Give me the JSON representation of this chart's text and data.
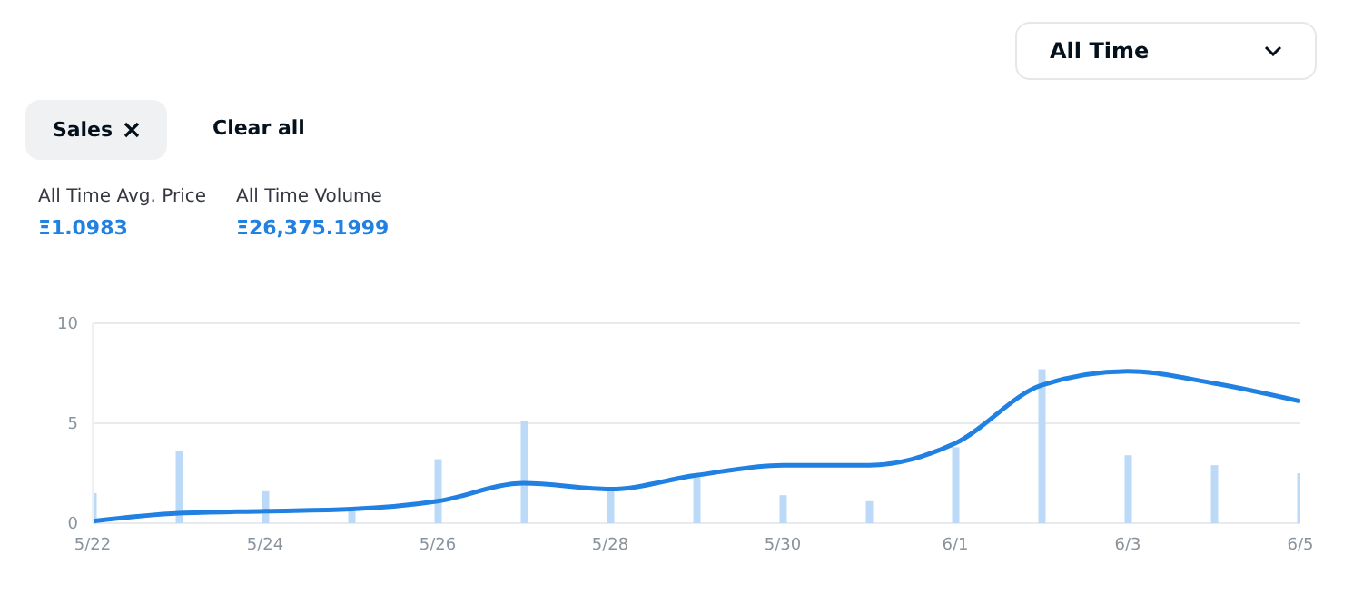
{
  "chart_data": {
    "type": "line",
    "x": [
      "--05-22",
      "--05-23",
      "--05-24",
      "--05-25",
      "--05-26",
      "--05-27",
      "--05-28",
      "--05-29",
      "--05-30",
      "--05-31",
      "--06-01",
      "--06-02",
      "--06-03",
      "--06-04",
      "--06-05"
    ],
    "series": [
      {
        "type": "bar",
        "color": "#bcdaf7",
        "values": [
          1.5,
          3.6,
          1.6,
          0.8,
          3.2,
          5.1,
          1.6,
          2.3,
          1.4,
          1.1,
          3.8,
          7.7,
          3.4,
          2.9,
          2.5
        ]
      },
      {
        "color": "#2081e2",
        "values": [
          0.1,
          0.5,
          0.6,
          0.7,
          1.1,
          2.0,
          1.7,
          2.4,
          2.9,
          2.9,
          4.0,
          6.9,
          7.6,
          7.0,
          6.1
        ]
      }
    ],
    "xlim": [
      "--05-22",
      "--06-05"
    ],
    "xticks": [
      {
        "value": "--05-22",
        "label": "5/22"
      },
      {
        "value": "--05-24",
        "label": "5/24"
      },
      {
        "value": "--05-26",
        "label": "5/26"
      },
      {
        "value": "--05-28",
        "label": "5/28"
      },
      {
        "value": "--05-30",
        "label": "5/30"
      },
      {
        "value": "--06-01",
        "label": "6/1"
      },
      {
        "value": "--06-03",
        "label": "6/3"
      },
      {
        "value": "--06-05",
        "label": "6/5"
      }
    ],
    "ylim": [
      0,
      10
    ],
    "yticks": [
      0,
      5,
      10
    ],
    "grid": "y",
    "marker": "none",
    "line_style": "solid",
    "annotations": [
      "All Time",
      "Sales",
      "Clear all",
      "All Time Avg. Price",
      "Ξ1.0983",
      "All Time Volume",
      "Ξ26,375.1999"
    ]
  }
}
